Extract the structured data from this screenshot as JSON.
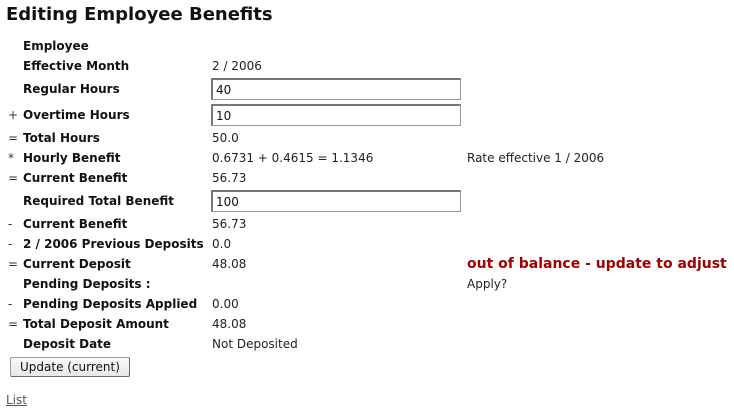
{
  "page_title": "Editing Employee Benefits",
  "rows": {
    "employee": {
      "label": "Employee"
    },
    "effective_month": {
      "label": "Effective Month",
      "value": "2 / 2006"
    },
    "regular_hours": {
      "label": "Regular Hours",
      "input_value": "40"
    },
    "overtime_hours": {
      "op": "+",
      "label": "Overtime Hours",
      "input_value": "10"
    },
    "total_hours": {
      "op": "=",
      "label": "Total Hours",
      "value": "50.0"
    },
    "hourly_benefit": {
      "op": "*",
      "label": "Hourly Benefit",
      "value": "0.6731 + 0.4615 = 1.1346",
      "note": "Rate effective 1 / 2006"
    },
    "current_benefit": {
      "op": "=",
      "label": "Current Benefit",
      "value": "56.73"
    },
    "required_total_benefit": {
      "label": "Required Total Benefit",
      "input_value": "100"
    },
    "current_benefit_2": {
      "op": "-",
      "label": "Current Benefit",
      "value": "56.73"
    },
    "previous_deposits": {
      "op": "-",
      "label": "2 / 2006 Previous Deposits",
      "value": "0.0"
    },
    "current_deposit": {
      "op": "=",
      "label": "Current Deposit",
      "value": "48.08",
      "warning": "out of balance - update to adjust"
    },
    "pending_deposits": {
      "label": "Pending Deposits :",
      "apply": "Apply?"
    },
    "pending_deposits_applied": {
      "op": "-",
      "label": "Pending Deposits Applied",
      "value": "0.00"
    },
    "total_deposit_amount": {
      "op": "=",
      "label": "Total Deposit Amount",
      "value": "48.08"
    },
    "deposit_date": {
      "label": "Deposit Date",
      "value": "Not Deposited"
    }
  },
  "buttons": {
    "update": "Update (current)"
  },
  "links": {
    "list": "List"
  },
  "colors": {
    "warning": "#a00000",
    "background": "#ffffff"
  }
}
